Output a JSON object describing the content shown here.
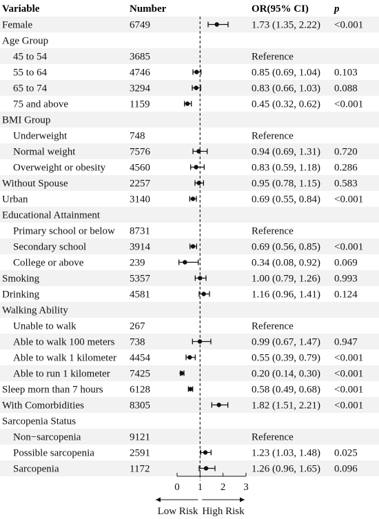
{
  "chart_data": {
    "type": "forest",
    "title": "",
    "headers": {
      "variable": "Variable",
      "number": "Number",
      "or_ci": "OR(95% CI)",
      "p": "p"
    },
    "rows": [
      {
        "label": "Female",
        "indent": false,
        "shaded": true,
        "number": "6749",
        "or_text": "1.73 (1.35, 2.22)",
        "p": "<0.001",
        "or": 1.73,
        "lo": 1.35,
        "hi": 2.22
      },
      {
        "label": "Age Group",
        "indent": false,
        "shaded": false,
        "number": "",
        "or_text": "",
        "p": ""
      },
      {
        "label": "45 to 54",
        "indent": true,
        "shaded": true,
        "number": "3685",
        "or_text": "Reference",
        "p": ""
      },
      {
        "label": "55 to 64",
        "indent": true,
        "shaded": false,
        "number": "4746",
        "or_text": "0.85 (0.69, 1.04)",
        "p": "0.103",
        "or": 0.85,
        "lo": 0.69,
        "hi": 1.04
      },
      {
        "label": "65 to 74",
        "indent": true,
        "shaded": true,
        "number": "3294",
        "or_text": "0.83 (0.66, 1.03)",
        "p": "0.088",
        "or": 0.83,
        "lo": 0.66,
        "hi": 1.03
      },
      {
        "label": "75 and above",
        "indent": true,
        "shaded": false,
        "number": "1159",
        "or_text": "0.45 (0.32, 0.62)",
        "p": "<0.001",
        "or": 0.45,
        "lo": 0.32,
        "hi": 0.62
      },
      {
        "label": "BMI Group",
        "indent": false,
        "shaded": true,
        "number": "",
        "or_text": "",
        "p": ""
      },
      {
        "label": "Underweight",
        "indent": true,
        "shaded": false,
        "number": "748",
        "or_text": "Reference",
        "p": ""
      },
      {
        "label": "Normal weight",
        "indent": true,
        "shaded": true,
        "number": "7576",
        "or_text": "0.94 (0.69, 1.31)",
        "p": "0.720",
        "or": 0.94,
        "lo": 0.69,
        "hi": 1.31
      },
      {
        "label": "Overweight or obesity",
        "indent": true,
        "shaded": false,
        "number": "4560",
        "or_text": "0.83 (0.59, 1.18)",
        "p": "0.286",
        "or": 0.83,
        "lo": 0.59,
        "hi": 1.18
      },
      {
        "label": "Without Spouse",
        "indent": false,
        "shaded": true,
        "number": "2257",
        "or_text": "0.95 (0.78, 1.15)",
        "p": "0.583",
        "or": 0.95,
        "lo": 0.78,
        "hi": 1.15
      },
      {
        "label": "Urban",
        "indent": false,
        "shaded": false,
        "number": "3140",
        "or_text": "0.69 (0.55, 0.84)",
        "p": "<0.001",
        "or": 0.69,
        "lo": 0.55,
        "hi": 0.84
      },
      {
        "label": "Educational Attainment",
        "indent": false,
        "shaded": true,
        "number": "",
        "or_text": "",
        "p": ""
      },
      {
        "label": "Primary school or below",
        "indent": true,
        "shaded": false,
        "number": "8731",
        "or_text": "Reference",
        "p": ""
      },
      {
        "label": "Secondary school",
        "indent": true,
        "shaded": true,
        "number": "3914",
        "or_text": "0.69 (0.56, 0.85)",
        "p": "<0.001",
        "or": 0.69,
        "lo": 0.56,
        "hi": 0.85
      },
      {
        "label": "College or above",
        "indent": true,
        "shaded": false,
        "number": "239",
        "or_text": "0.34 (0.08, 0.92)",
        "p": "0.069",
        "or": 0.34,
        "lo": 0.08,
        "hi": 0.92
      },
      {
        "label": "Smoking",
        "indent": false,
        "shaded": true,
        "number": "5357",
        "or_text": "1.00 (0.79, 1.26)",
        "p": "0.993",
        "or": 1.0,
        "lo": 0.79,
        "hi": 1.26
      },
      {
        "label": "Drinking",
        "indent": false,
        "shaded": false,
        "number": "4581",
        "or_text": "1.16 (0.96, 1.41)",
        "p": "0.124",
        "or": 1.16,
        "lo": 0.96,
        "hi": 1.41
      },
      {
        "label": "Walking Ability",
        "indent": false,
        "shaded": true,
        "number": "",
        "or_text": "",
        "p": ""
      },
      {
        "label": "Unable to walk",
        "indent": true,
        "shaded": false,
        "number": "267",
        "or_text": "Reference",
        "p": ""
      },
      {
        "label": "Able to walk 100 meters",
        "indent": true,
        "shaded": true,
        "number": "738",
        "or_text": "0.99 (0.67, 1.47)",
        "p": "0.947",
        "or": 0.99,
        "lo": 0.67,
        "hi": 1.47
      },
      {
        "label": "Able to walk 1 kilometer",
        "indent": true,
        "shaded": false,
        "number": "4454",
        "or_text": "0.55 (0.39, 0.79)",
        "p": "<0.001",
        "or": 0.55,
        "lo": 0.39,
        "hi": 0.79
      },
      {
        "label": "Able to run 1 kilometer",
        "indent": true,
        "shaded": true,
        "number": "7425",
        "or_text": "0.20 (0.14, 0.30)",
        "p": "<0.001",
        "or": 0.2,
        "lo": 0.14,
        "hi": 0.3
      },
      {
        "label": "Sleep morn than 7 hours",
        "indent": false,
        "shaded": false,
        "number": "6128",
        "or_text": "0.58 (0.49, 0.68)",
        "p": "<0.001",
        "or": 0.58,
        "lo": 0.49,
        "hi": 0.68
      },
      {
        "label": "With Comorbidities",
        "indent": false,
        "shaded": true,
        "number": "8305",
        "or_text": "1.82 (1.51, 2.21)",
        "p": "<0.001",
        "or": 1.82,
        "lo": 1.51,
        "hi": 2.21
      },
      {
        "label": "Sarcopenia Status",
        "indent": false,
        "shaded": false,
        "number": "",
        "or_text": "",
        "p": ""
      },
      {
        "label": "Non−sarcopenia",
        "indent": true,
        "shaded": true,
        "number": "9121",
        "or_text": "Reference",
        "p": ""
      },
      {
        "label": "Possible sarcopenia",
        "indent": true,
        "shaded": false,
        "number": "2591",
        "or_text": "1.23 (1.03, 1.48)",
        "p": "0.025",
        "or": 1.23,
        "lo": 1.03,
        "hi": 1.48
      },
      {
        "label": "Sarcopenia",
        "indent": true,
        "shaded": true,
        "number": "1172",
        "or_text": "1.26 (0.96, 1.65)",
        "p": "0.096",
        "or": 1.26,
        "lo": 0.96,
        "hi": 1.65
      }
    ],
    "x_axis": {
      "ticks": [
        0,
        1,
        2,
        3
      ],
      "xlim": [
        0,
        3
      ],
      "reference_line": 1
    },
    "direction_labels": {
      "left": "Low Risk",
      "right": "High Risk"
    },
    "colors": {
      "shade": "#f2f2f2",
      "ink": "#111111"
    }
  }
}
